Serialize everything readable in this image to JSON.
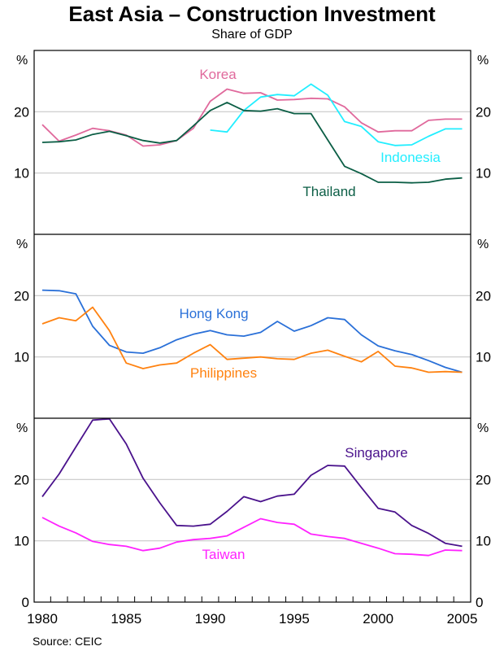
{
  "chart_data": {
    "type": "line",
    "title": "East Asia – Construction Investment",
    "subtitle": "Share of GDP",
    "unit_label": "%",
    "source": "Source: CEIC",
    "x_ticks": [
      "1980",
      "1985",
      "1990",
      "1995",
      "2000",
      "2005"
    ],
    "xlim": [
      1980,
      2005
    ],
    "grid": true,
    "panels": [
      {
        "ylim": [
          0,
          30
        ],
        "y_ticks": [
          "10",
          "20"
        ],
        "series": [
          {
            "name": "Korea",
            "color": "#e0699c",
            "start": 1980,
            "values": [
              17.9,
              15.2,
              16.2,
              17.3,
              16.9,
              16.2,
              14.4,
              14.6,
              15.3,
              17.3,
              21.7,
              23.7,
              23.0,
              23.1,
              21.9,
              22.0,
              22.2,
              22.1,
              20.8,
              18.2,
              16.7,
              16.9,
              16.9,
              18.6,
              18.8,
              18.8
            ]
          },
          {
            "name": "Indonesia",
            "color": "#22eeff",
            "start": 1990,
            "values": [
              17.0,
              16.7,
              20.2,
              22.4,
              22.8,
              22.6,
              24.5,
              22.7,
              18.4,
              17.6,
              15.1,
              14.5,
              14.6,
              16.0,
              17.2,
              17.2
            ]
          },
          {
            "name": "Thailand",
            "color": "#0b5e45",
            "start": 1980,
            "values": [
              15.0,
              15.1,
              15.4,
              16.3,
              16.8,
              16.1,
              15.3,
              14.9,
              15.3,
              17.7,
              20.2,
              21.5,
              20.2,
              20.1,
              20.5,
              19.7,
              19.7,
              15.4,
              11.1,
              9.9,
              8.5,
              8.5,
              8.4,
              8.5,
              9.0,
              9.2
            ]
          }
        ]
      },
      {
        "ylim": [
          0,
          30
        ],
        "y_ticks": [
          "10",
          "20"
        ],
        "series": [
          {
            "name": "Hong Kong",
            "color": "#2a70d8",
            "start": 1980,
            "values": [
              20.9,
              20.8,
              20.3,
              15.0,
              11.9,
              10.8,
              10.6,
              11.5,
              12.8,
              13.7,
              14.3,
              13.6,
              13.4,
              14.0,
              15.8,
              14.2,
              15.1,
              16.4,
              16.1,
              13.6,
              11.8,
              11.0,
              10.4,
              9.4,
              8.3,
              7.5
            ]
          },
          {
            "name": "Philippines",
            "color": "#ff8210",
            "start": 1980,
            "values": [
              15.4,
              16.4,
              15.9,
              18.1,
              14.3,
              9.0,
              8.1,
              8.7,
              9.0,
              10.6,
              12.0,
              9.6,
              9.8,
              10.0,
              9.7,
              9.6,
              10.6,
              11.1,
              10.1,
              9.2,
              10.9,
              8.5,
              8.2,
              7.5,
              7.6,
              7.5
            ]
          }
        ]
      },
      {
        "ylim": [
          0,
          30
        ],
        "y_ticks": [
          "0",
          "10",
          "20"
        ],
        "series": [
          {
            "name": "Singapore",
            "color": "#4a128c",
            "start": 1980,
            "values": [
              17.2,
              20.9,
              25.3,
              29.7,
              29.9,
              25.8,
              20.2,
              16.2,
              12.5,
              12.4,
              12.7,
              14.8,
              17.2,
              16.4,
              17.3,
              17.6,
              20.7,
              22.3,
              22.2,
              18.7,
              15.3,
              14.7,
              12.5,
              11.2,
              9.6,
              9.1
            ]
          },
          {
            "name": "Taiwan",
            "color": "#ff22ff",
            "start": 1980,
            "values": [
              13.8,
              12.4,
              11.3,
              9.9,
              9.4,
              9.1,
              8.4,
              8.8,
              9.8,
              10.2,
              10.4,
              10.8,
              12.2,
              13.6,
              13.0,
              12.7,
              11.1,
              10.7,
              10.4,
              9.6,
              8.8,
              7.9,
              7.8,
              7.6,
              8.5,
              8.4
            ]
          }
        ]
      }
    ]
  }
}
